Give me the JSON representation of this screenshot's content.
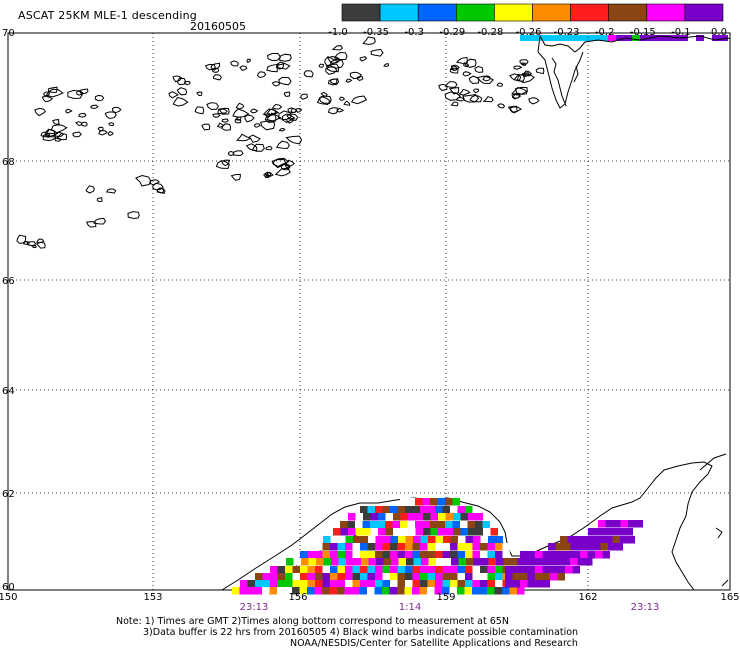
{
  "header": {
    "title": "ASCAT 25KM MLE-1 descending",
    "date": "20160505"
  },
  "colorbar": {
    "colors": [
      "#3c3c3c",
      "#00c8ff",
      "#0064ff",
      "#00c800",
      "#ffff00",
      "#ff8c00",
      "#ff1e1e",
      "#8b4513",
      "#ff00ff",
      "#7800c8"
    ],
    "labels": [
      "-1.0",
      "-0.35",
      "-0.3",
      "-0.29",
      "-0.28",
      "-0.26",
      "-0.23",
      "-0.2",
      "-0.15",
      "-0.1",
      "0.0"
    ]
  },
  "map": {
    "lat_labels": [
      "70",
      "68",
      "66",
      "64",
      "62",
      "60"
    ],
    "lon_labels": [
      "150",
      "153",
      "156",
      "159",
      "162",
      "165"
    ],
    "time_labels": [
      "23:13",
      "1:14",
      "23:13"
    ],
    "time_color": "#7a2a8a"
  },
  "notes": {
    "line1": "Note: 1) Times are GMT 2)Times along bottom correspond to measurement at 65N",
    "line2": "3)Data buffer is 22 hrs from 20160505 4) Black wind barbs indicate possible contamination",
    "line3": "NOAA/NESDIS/Center for Satellite Applications and Research"
  }
}
